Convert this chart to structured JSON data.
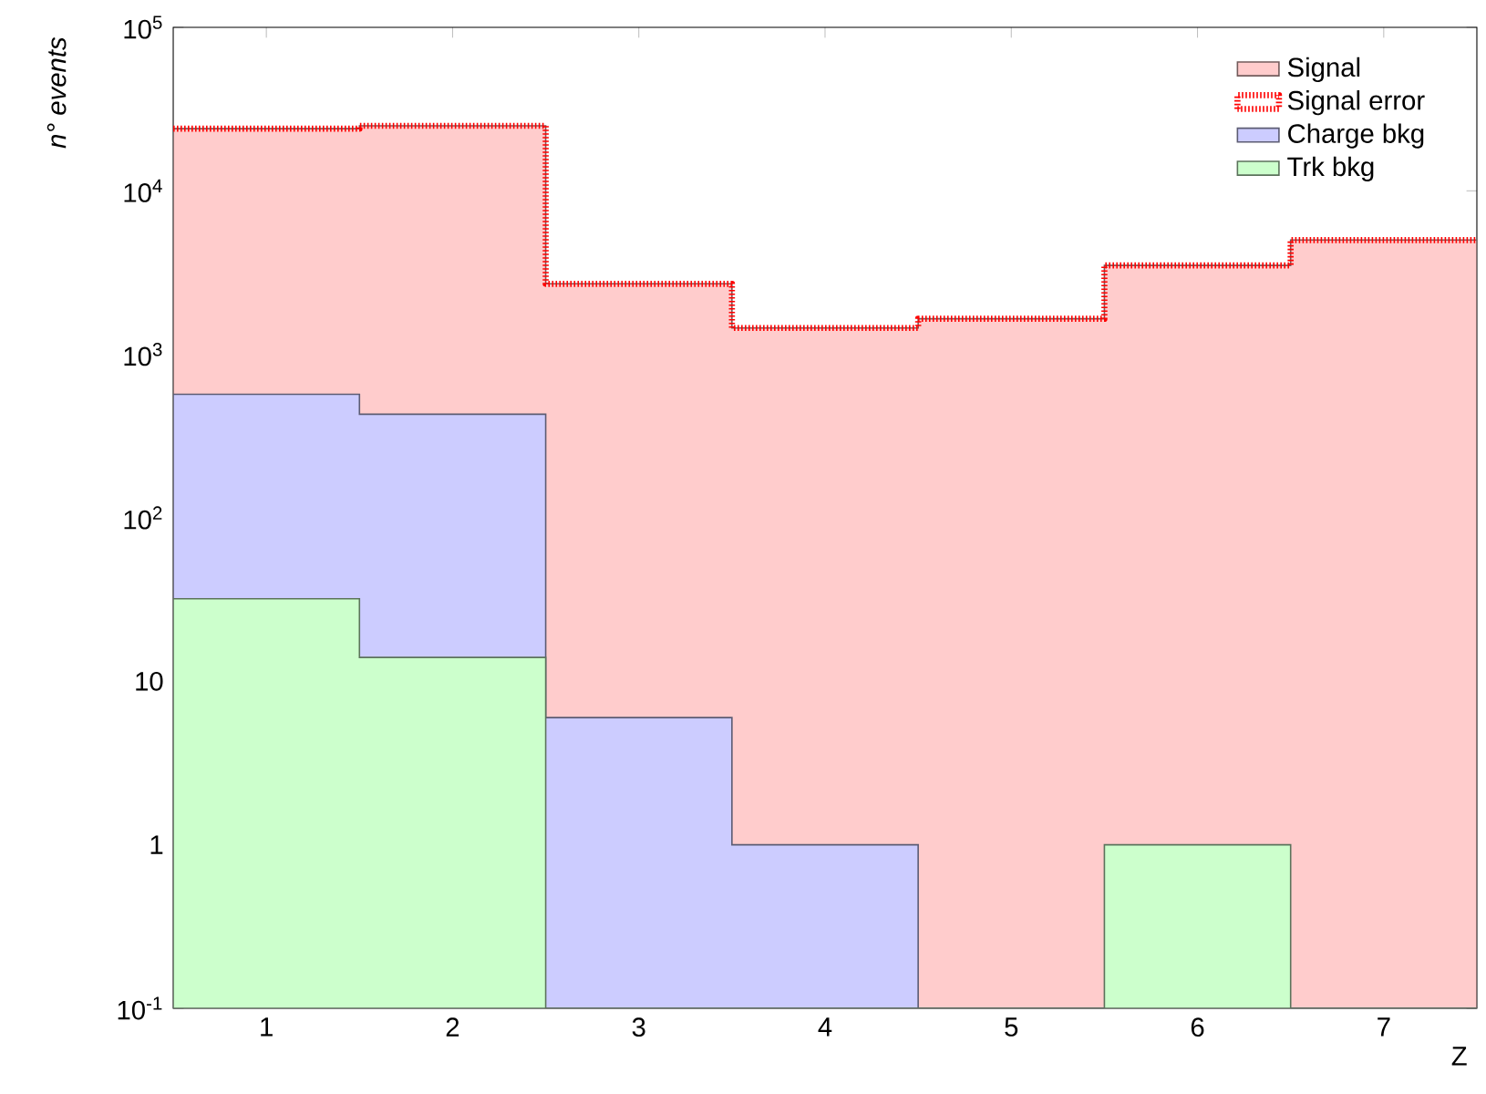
{
  "chart_data": {
    "type": "histogram",
    "xlabel": "Z",
    "ylabel": "n° events",
    "bins": [
      0.5,
      1.5,
      2.5,
      3.5,
      4.5,
      5.5,
      6.5,
      7.5
    ],
    "series": [
      {
        "name": "Signal",
        "color": "#ffcccc",
        "values": [
          24000,
          25000,
          2700,
          1450,
          1650,
          3500,
          5000
        ]
      },
      {
        "name": "Signal error",
        "color": "#ff0000",
        "values": [
          24000,
          25000,
          2700,
          1450,
          1650,
          3500,
          5000
        ],
        "line_style": "dotted"
      },
      {
        "name": "Charge bkg",
        "color": "#ccccff",
        "values": [
          570,
          430,
          6,
          1,
          null,
          null,
          null
        ]
      },
      {
        "name": "Trk bkg",
        "color": "#ccffcc",
        "values": [
          32,
          14,
          null,
          null,
          null,
          1,
          null
        ]
      }
    ],
    "log": "y",
    "xlim": [
      0.5,
      7.5
    ],
    "ylim": [
      0.1,
      100000
    ],
    "xticks": [
      1,
      2,
      3,
      4,
      5,
      6,
      7
    ],
    "yticks": [
      {
        "value": 0.1,
        "label": "10$^{-1}$"
      },
      1,
      10,
      {
        "value": 100,
        "label": "10$^{2}$"
      },
      {
        "value": 1000,
        "label": "10$^{3}$"
      },
      {
        "value": 10000,
        "label": "10$^{4}$"
      },
      {
        "value": 100000,
        "label": "10$^{5}$"
      }
    ],
    "legend": "top right",
    "grid": false
  }
}
